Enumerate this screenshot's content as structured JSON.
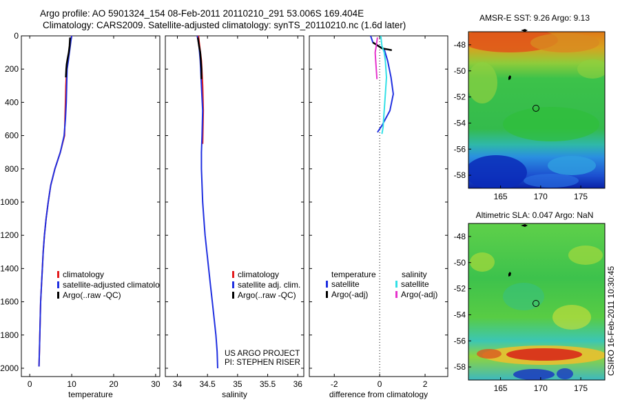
{
  "header": {
    "line1": "Argo profile: AO 5901324_154 08-Feb-2011 20110210_291 53.006S 169.404E",
    "line2": "Climatology: CARS2009. Satellite-adjusted climatology: synTS_20110210.nc (1.6d later)"
  },
  "side_label": "CSIRO 16-Feb-2011 10:30:45",
  "colors": {
    "climatology": "#e31a1c",
    "satellite": "#1f2fe0",
    "argo": "#000000",
    "satellite_salinity": "#33e0e6",
    "argo_salinity": "#e633cc"
  },
  "chart_data": [
    {
      "type": "line",
      "name": "temperature-profile",
      "xlabel": "temperature",
      "ylabel": "",
      "xlim": [
        -2,
        31
      ],
      "ylim": [
        2050,
        0
      ],
      "xticks": [
        0,
        10,
        20,
        30
      ],
      "yticks": [
        0,
        200,
        400,
        600,
        800,
        1000,
        1200,
        1400,
        1600,
        1800,
        2000
      ],
      "legend": {
        "placement": "lower-center",
        "entries": [
          "climatology",
          "satellite-adjusted climatology",
          "Argo(..raw -QC)"
        ]
      },
      "series": [
        {
          "name": "climatology",
          "color": "#e31a1c",
          "points": [
            [
              10.0,
              0
            ],
            [
              9.7,
              30
            ],
            [
              9.5,
              70
            ],
            [
              9.3,
              110
            ],
            [
              9.0,
              150
            ],
            [
              8.8,
              200
            ],
            [
              8.6,
              300
            ],
            [
              8.5,
              400
            ],
            [
              8.4,
              500
            ],
            [
              8.3,
              600
            ],
            [
              7.3,
              700
            ],
            [
              6.0,
              800
            ],
            [
              5.0,
              900
            ],
            [
              4.4,
              1000
            ],
            [
              3.9,
              1100
            ],
            [
              3.5,
              1200
            ],
            [
              3.2,
              1300
            ],
            [
              3.0,
              1400
            ],
            [
              2.8,
              1500
            ],
            [
              2.6,
              1600
            ],
            [
              2.5,
              1700
            ],
            [
              2.4,
              1800
            ],
            [
              2.3,
              1900
            ],
            [
              2.2,
              1990
            ]
          ]
        },
        {
          "name": "satellite-adjusted climatology",
          "color": "#1f2fe0",
          "points": [
            [
              10.0,
              0
            ],
            [
              9.8,
              30
            ],
            [
              9.6,
              70
            ],
            [
              9.4,
              110
            ],
            [
              9.2,
              150
            ],
            [
              8.9,
              200
            ],
            [
              8.8,
              300
            ],
            [
              8.7,
              400
            ],
            [
              8.5,
              500
            ],
            [
              8.2,
              600
            ],
            [
              7.3,
              700
            ],
            [
              6.0,
              800
            ],
            [
              5.0,
              900
            ],
            [
              4.4,
              1000
            ],
            [
              3.9,
              1100
            ],
            [
              3.5,
              1200
            ],
            [
              3.2,
              1300
            ],
            [
              3.0,
              1400
            ],
            [
              2.8,
              1500
            ],
            [
              2.6,
              1600
            ],
            [
              2.5,
              1700
            ],
            [
              2.4,
              1800
            ],
            [
              2.3,
              1900
            ],
            [
              2.2,
              1990
            ]
          ]
        },
        {
          "name": "Argo(..raw -QC)",
          "color": "#000000",
          "points": [
            [
              9.6,
              10
            ],
            [
              9.5,
              60
            ],
            [
              9.3,
              100
            ],
            [
              9.0,
              140
            ],
            [
              8.8,
              170
            ],
            [
              8.7,
              200
            ],
            [
              8.6,
              250
            ]
          ]
        }
      ]
    },
    {
      "type": "line",
      "name": "salinity-profile",
      "xlabel": "salinity",
      "ylabel": "",
      "xlim": [
        33.8,
        36.1
      ],
      "ylim": [
        2050,
        0
      ],
      "xticks": [
        34,
        34.5,
        35,
        35.5,
        36
      ],
      "xticklabels": [
        "34",
        "34.5",
        "35",
        "35.5",
        "36"
      ],
      "legend": {
        "placement": "lower-right",
        "entries": [
          "climatology",
          "satellite adj. clim.",
          "Argo(..raw -QC)"
        ]
      },
      "annotation": [
        "US ARGO PROJECT",
        "PI: STEPHEN RISER"
      ],
      "series": [
        {
          "name": "climatology",
          "color": "#e31a1c",
          "points": [
            [
              34.35,
              0
            ],
            [
              34.37,
              60
            ],
            [
              34.4,
              150
            ],
            [
              34.42,
              300
            ],
            [
              34.43,
              450
            ],
            [
              34.42,
              650
            ]
          ]
        },
        {
          "name": "satellite adj. clim.",
          "color": "#1f2fe0",
          "points": [
            [
              34.33,
              0
            ],
            [
              34.36,
              60
            ],
            [
              34.38,
              150
            ],
            [
              34.4,
              300
            ],
            [
              34.42,
              450
            ],
            [
              34.41,
              600
            ],
            [
              34.4,
              700
            ],
            [
              34.4,
              800
            ],
            [
              34.41,
              900
            ],
            [
              34.42,
              1000
            ],
            [
              34.44,
              1100
            ],
            [
              34.46,
              1200
            ],
            [
              34.49,
              1300
            ],
            [
              34.52,
              1400
            ],
            [
              34.55,
              1500
            ],
            [
              34.58,
              1600
            ],
            [
              34.61,
              1700
            ],
            [
              34.64,
              1800
            ],
            [
              34.66,
              1900
            ],
            [
              34.67,
              2000
            ]
          ]
        },
        {
          "name": "Argo(..raw -QC)",
          "color": "#000000",
          "points": [
            [
              34.34,
              10
            ],
            [
              34.36,
              60
            ],
            [
              34.38,
              100
            ],
            [
              34.39,
              150
            ],
            [
              34.4,
              200
            ],
            [
              34.4,
              260
            ]
          ]
        }
      ]
    },
    {
      "type": "line",
      "name": "difference-profile",
      "xlabel": "difference from climatology",
      "ylabel": "",
      "xlim": [
        -3.1,
        3.0
      ],
      "ylim": [
        2050,
        0
      ],
      "xticks": [
        -2,
        0,
        2
      ],
      "zero_line": "dotted",
      "legend": {
        "placement": "lower-center",
        "headers": [
          "temperature",
          "salinity"
        ],
        "entries": [
          "satellite",
          "Argo(-adj)",
          "satellite",
          "Argo(-adj)"
        ]
      },
      "series": [
        {
          "name": "satellite",
          "group": "temperature",
          "color": "#1f2fe0",
          "points": [
            [
              -0.4,
              0
            ],
            [
              -0.3,
              40
            ],
            [
              0.2,
              80
            ],
            [
              0.35,
              150
            ],
            [
              0.5,
              250
            ],
            [
              0.6,
              350
            ],
            [
              0.45,
              450
            ],
            [
              0.1,
              540
            ],
            [
              -0.1,
              580
            ]
          ]
        },
        {
          "name": "Argo(-adj)",
          "group": "temperature",
          "color": "#000000",
          "points": [
            [
              -0.3,
              40
            ],
            [
              0.1,
              75
            ],
            [
              0.5,
              85
            ],
            [
              0.5,
              90
            ]
          ]
        },
        {
          "name": "satellite",
          "group": "salinity",
          "color": "#33e0e6",
          "points": [
            [
              0.05,
              0
            ],
            [
              0.1,
              60
            ],
            [
              0.2,
              100
            ],
            [
              0.25,
              150
            ],
            [
              0.3,
              250
            ],
            [
              0.25,
              350
            ],
            [
              0.2,
              450
            ],
            [
              0.15,
              550
            ],
            [
              0.1,
              590
            ]
          ]
        },
        {
          "name": "Argo(-adj)",
          "group": "salinity",
          "color": "#e633cc",
          "points": [
            [
              -0.1,
              10
            ],
            [
              -0.15,
              60
            ],
            [
              -0.2,
              100
            ],
            [
              -0.18,
              140
            ],
            [
              -0.15,
              200
            ],
            [
              -0.12,
              260
            ]
          ]
        }
      ]
    },
    {
      "type": "heatmap",
      "name": "sst-map",
      "title": "AMSR-E SST: 9.26 Argo: 9.13",
      "xlim": [
        161,
        178
      ],
      "ylim": [
        -59,
        -47
      ],
      "xticks": [
        165,
        170,
        175
      ],
      "yticks": [
        -48,
        -50,
        -52,
        -54,
        -56,
        -58
      ],
      "profile_location": [
        169.404,
        -53.006
      ]
    },
    {
      "type": "heatmap",
      "name": "sla-map",
      "title": "Altimetric SLA: 0.047 Argo: NaN",
      "xlim": [
        161,
        178
      ],
      "ylim": [
        -59,
        -47
      ],
      "xticks": [
        165,
        170,
        175
      ],
      "yticks": [
        -48,
        -50,
        -52,
        -54,
        -56,
        -58
      ],
      "profile_location": [
        169.404,
        -53.006
      ]
    }
  ]
}
